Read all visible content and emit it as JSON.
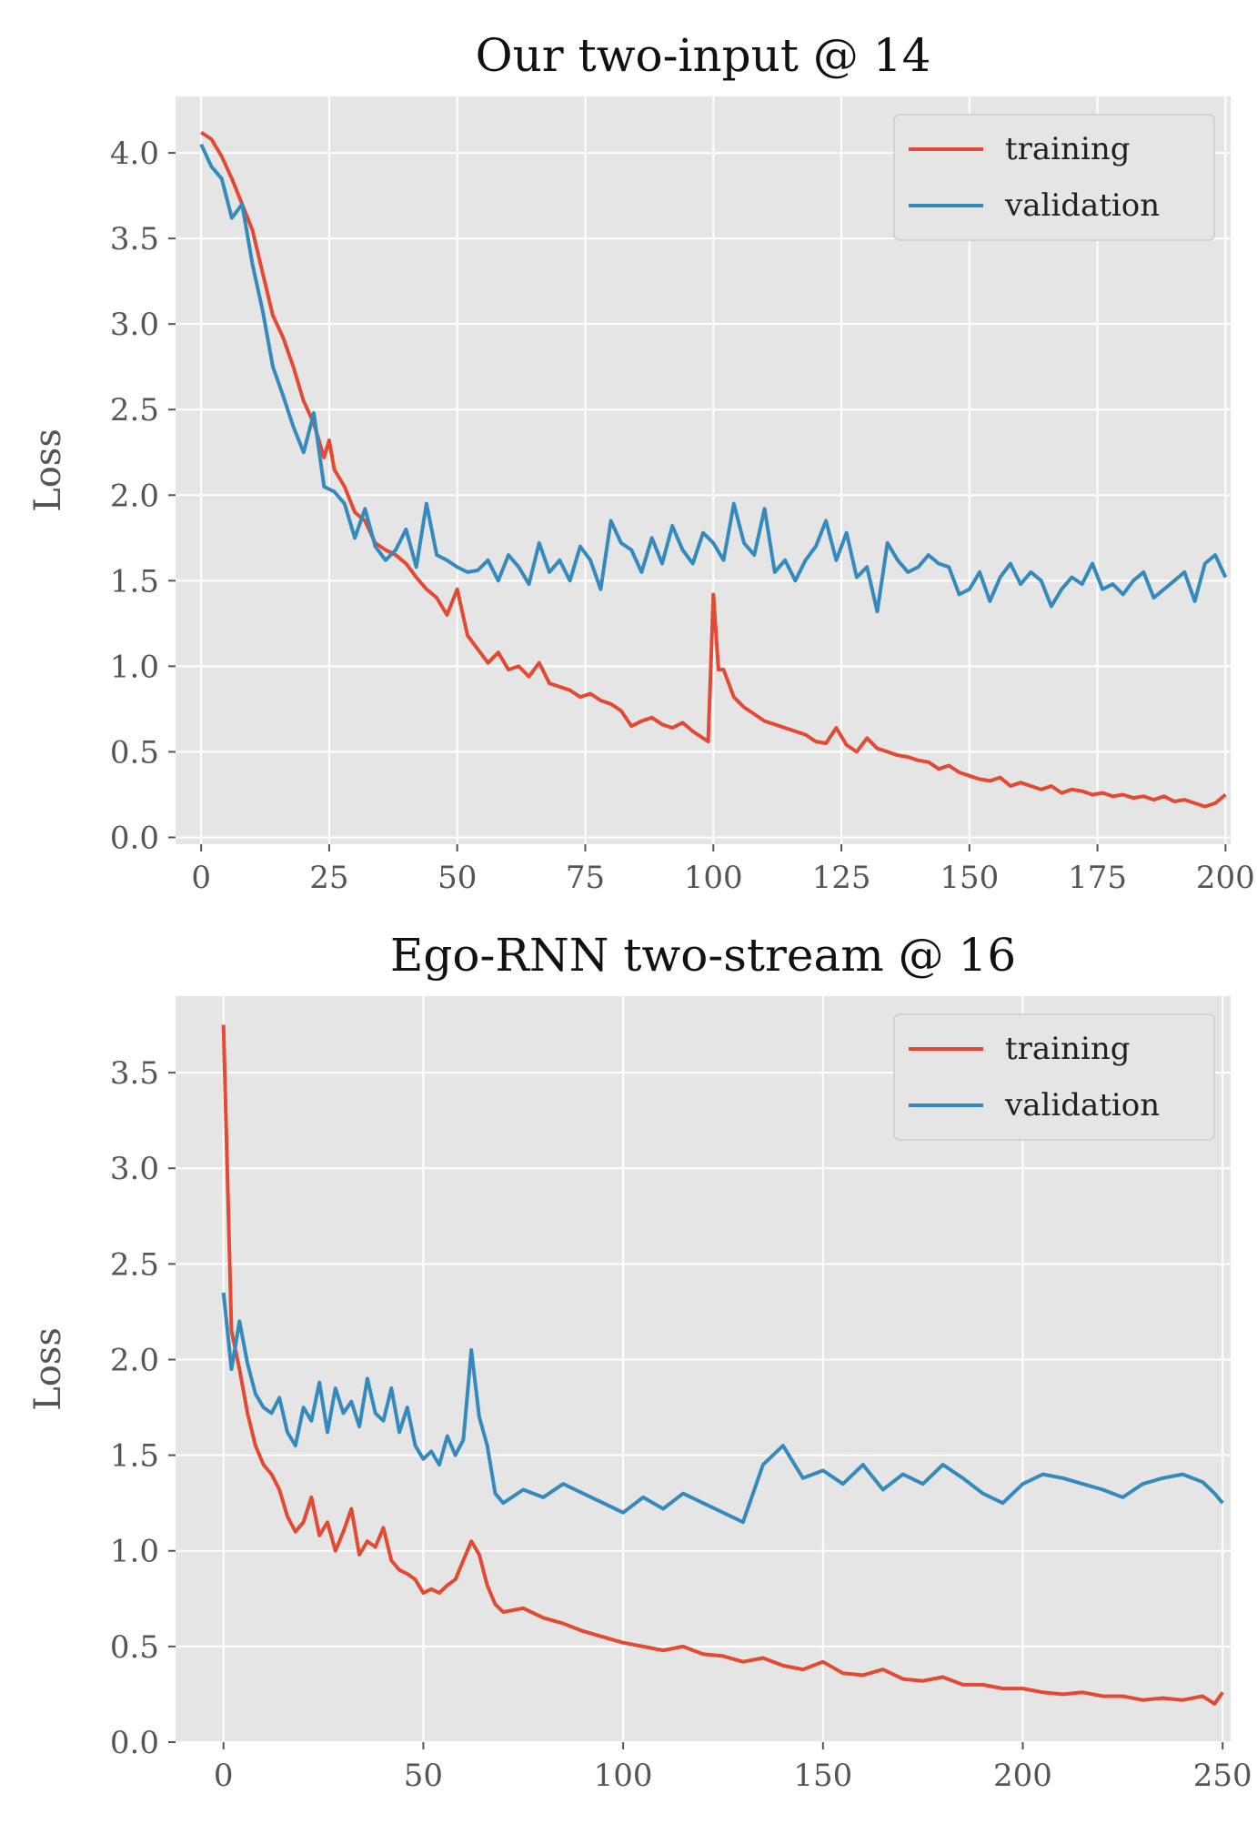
{
  "chart_data": [
    {
      "type": "line",
      "title": "Our two-input @ 14",
      "xlabel": "",
      "ylabel": "Loss",
      "xlim": [
        -5,
        201
      ],
      "ylim": [
        -0.04,
        4.33
      ],
      "xticks": [
        0,
        25,
        50,
        75,
        100,
        125,
        150,
        175,
        200
      ],
      "yticks": [
        0.0,
        0.5,
        1.0,
        1.5,
        2.0,
        2.5,
        3.0,
        3.5,
        4.0
      ],
      "xtick_labels": [
        "0",
        "25",
        "50",
        "75",
        "100",
        "125",
        "150",
        "175",
        "200"
      ],
      "ytick_labels": [
        "0.0",
        "0.5",
        "1.0",
        "1.5",
        "2.0",
        "2.5",
        "3.0",
        "3.5",
        "4.0"
      ],
      "grid": true,
      "legend_position": "top-right",
      "series": [
        {
          "name": "training",
          "color": "#e24a33",
          "x": [
            0,
            2,
            4,
            6,
            8,
            10,
            12,
            14,
            16,
            18,
            20,
            22,
            24,
            25,
            26,
            28,
            30,
            32,
            34,
            36,
            38,
            40,
            42,
            44,
            46,
            48,
            50,
            52,
            54,
            56,
            58,
            60,
            62,
            64,
            66,
            68,
            70,
            72,
            74,
            76,
            78,
            80,
            82,
            84,
            86,
            88,
            90,
            92,
            94,
            96,
            98,
            99,
            100,
            101,
            102,
            104,
            106,
            108,
            110,
            112,
            114,
            116,
            118,
            120,
            122,
            124,
            126,
            128,
            130,
            132,
            134,
            136,
            138,
            140,
            142,
            144,
            146,
            148,
            150,
            152,
            154,
            156,
            158,
            160,
            162,
            164,
            166,
            168,
            170,
            172,
            174,
            176,
            178,
            180,
            182,
            184,
            186,
            188,
            190,
            192,
            194,
            196,
            198,
            200
          ],
          "y": [
            4.12,
            4.08,
            3.98,
            3.85,
            3.7,
            3.55,
            3.3,
            3.05,
            2.92,
            2.75,
            2.55,
            2.42,
            2.22,
            2.32,
            2.15,
            2.05,
            1.9,
            1.85,
            1.72,
            1.68,
            1.65,
            1.6,
            1.52,
            1.45,
            1.4,
            1.3,
            1.45,
            1.18,
            1.1,
            1.02,
            1.08,
            0.98,
            1.0,
            0.94,
            1.02,
            0.9,
            0.88,
            0.86,
            0.82,
            0.84,
            0.8,
            0.78,
            0.74,
            0.65,
            0.68,
            0.7,
            0.66,
            0.64,
            0.67,
            0.62,
            0.58,
            0.56,
            1.42,
            0.98,
            0.98,
            0.82,
            0.76,
            0.72,
            0.68,
            0.66,
            0.64,
            0.62,
            0.6,
            0.56,
            0.55,
            0.64,
            0.54,
            0.5,
            0.58,
            0.52,
            0.5,
            0.48,
            0.47,
            0.45,
            0.44,
            0.4,
            0.42,
            0.38,
            0.36,
            0.34,
            0.33,
            0.35,
            0.3,
            0.32,
            0.3,
            0.28,
            0.3,
            0.26,
            0.28,
            0.27,
            0.25,
            0.26,
            0.24,
            0.25,
            0.23,
            0.24,
            0.22,
            0.24,
            0.21,
            0.22,
            0.2,
            0.18,
            0.2,
            0.25
          ]
        },
        {
          "name": "validation",
          "color": "#348abd",
          "x": [
            0,
            2,
            4,
            6,
            8,
            10,
            12,
            14,
            16,
            18,
            20,
            22,
            24,
            26,
            28,
            30,
            32,
            34,
            36,
            38,
            40,
            42,
            44,
            46,
            48,
            50,
            52,
            54,
            56,
            58,
            60,
            62,
            64,
            66,
            68,
            70,
            72,
            74,
            76,
            78,
            80,
            82,
            84,
            86,
            88,
            90,
            92,
            94,
            96,
            98,
            100,
            102,
            104,
            106,
            108,
            110,
            112,
            114,
            116,
            118,
            120,
            122,
            124,
            126,
            128,
            130,
            132,
            134,
            136,
            138,
            140,
            142,
            144,
            146,
            148,
            150,
            152,
            154,
            156,
            158,
            160,
            162,
            164,
            166,
            168,
            170,
            172,
            174,
            176,
            178,
            180,
            182,
            184,
            186,
            188,
            190,
            192,
            194,
            196,
            198,
            200
          ],
          "y": [
            4.05,
            3.92,
            3.85,
            3.62,
            3.7,
            3.35,
            3.08,
            2.75,
            2.58,
            2.4,
            2.25,
            2.48,
            2.05,
            2.02,
            1.95,
            1.75,
            1.92,
            1.7,
            1.62,
            1.68,
            1.8,
            1.58,
            1.95,
            1.65,
            1.62,
            1.58,
            1.55,
            1.56,
            1.62,
            1.5,
            1.65,
            1.58,
            1.48,
            1.72,
            1.55,
            1.62,
            1.5,
            1.7,
            1.62,
            1.45,
            1.85,
            1.72,
            1.68,
            1.55,
            1.75,
            1.6,
            1.82,
            1.68,
            1.6,
            1.78,
            1.72,
            1.62,
            1.95,
            1.72,
            1.65,
            1.92,
            1.55,
            1.62,
            1.5,
            1.62,
            1.7,
            1.85,
            1.62,
            1.78,
            1.52,
            1.58,
            1.32,
            1.72,
            1.62,
            1.55,
            1.58,
            1.65,
            1.6,
            1.58,
            1.42,
            1.45,
            1.55,
            1.38,
            1.52,
            1.6,
            1.48,
            1.55,
            1.5,
            1.35,
            1.45,
            1.52,
            1.48,
            1.6,
            1.45,
            1.48,
            1.42,
            1.5,
            1.55,
            1.4,
            1.45,
            1.5,
            1.55,
            1.38,
            1.6,
            1.65,
            1.52
          ]
        }
      ]
    },
    {
      "type": "line",
      "title": "Ego-RNN two-stream @ 16",
      "xlabel": "",
      "ylabel": "Loss",
      "xlim": [
        -12,
        252
      ],
      "ylim": [
        0.0,
        3.9
      ],
      "xticks": [
        0,
        50,
        100,
        150,
        200,
        250
      ],
      "yticks": [
        0.0,
        0.5,
        1.0,
        1.5,
        2.0,
        2.5,
        3.0,
        3.5
      ],
      "xtick_labels": [
        "0",
        "50",
        "100",
        "150",
        "200",
        "250"
      ],
      "ytick_labels": [
        "0.0",
        "0.5",
        "1.0",
        "1.5",
        "2.0",
        "2.5",
        "3.0",
        "3.5"
      ],
      "grid": true,
      "legend_position": "top-right",
      "series": [
        {
          "name": "training",
          "color": "#e24a33",
          "x": [
            0,
            2,
            4,
            6,
            8,
            10,
            12,
            14,
            16,
            18,
            20,
            22,
            24,
            26,
            28,
            30,
            32,
            34,
            36,
            38,
            40,
            42,
            44,
            46,
            48,
            50,
            52,
            54,
            56,
            58,
            60,
            62,
            64,
            66,
            68,
            70,
            75,
            80,
            85,
            90,
            95,
            100,
            105,
            110,
            115,
            120,
            125,
            130,
            135,
            140,
            145,
            150,
            155,
            160,
            165,
            170,
            175,
            180,
            185,
            190,
            195,
            200,
            205,
            210,
            215,
            220,
            225,
            230,
            235,
            240,
            245,
            248,
            250
          ],
          "y": [
            3.75,
            2.15,
            1.95,
            1.72,
            1.55,
            1.45,
            1.4,
            1.32,
            1.18,
            1.1,
            1.15,
            1.28,
            1.08,
            1.15,
            1.0,
            1.1,
            1.22,
            0.98,
            1.05,
            1.02,
            1.12,
            0.95,
            0.9,
            0.88,
            0.85,
            0.78,
            0.8,
            0.78,
            0.82,
            0.85,
            0.95,
            1.05,
            0.98,
            0.82,
            0.72,
            0.68,
            0.7,
            0.65,
            0.62,
            0.58,
            0.55,
            0.52,
            0.5,
            0.48,
            0.5,
            0.46,
            0.45,
            0.42,
            0.44,
            0.4,
            0.38,
            0.42,
            0.36,
            0.35,
            0.38,
            0.33,
            0.32,
            0.34,
            0.3,
            0.3,
            0.28,
            0.28,
            0.26,
            0.25,
            0.26,
            0.24,
            0.24,
            0.22,
            0.23,
            0.22,
            0.24,
            0.2,
            0.26
          ]
        },
        {
          "name": "validation",
          "color": "#348abd",
          "x": [
            0,
            2,
            4,
            6,
            8,
            10,
            12,
            14,
            16,
            18,
            20,
            22,
            24,
            26,
            28,
            30,
            32,
            34,
            36,
            38,
            40,
            42,
            44,
            46,
            48,
            50,
            52,
            54,
            56,
            58,
            60,
            62,
            64,
            66,
            68,
            70,
            75,
            80,
            85,
            90,
            95,
            100,
            105,
            110,
            115,
            120,
            125,
            130,
            135,
            140,
            145,
            150,
            155,
            160,
            165,
            170,
            175,
            180,
            185,
            190,
            195,
            200,
            205,
            210,
            215,
            220,
            225,
            230,
            235,
            240,
            245,
            248,
            250
          ],
          "y": [
            2.35,
            1.95,
            2.2,
            1.98,
            1.82,
            1.75,
            1.72,
            1.8,
            1.62,
            1.55,
            1.75,
            1.68,
            1.88,
            1.62,
            1.85,
            1.72,
            1.78,
            1.65,
            1.9,
            1.72,
            1.68,
            1.85,
            1.62,
            1.75,
            1.55,
            1.48,
            1.52,
            1.45,
            1.6,
            1.5,
            1.58,
            2.05,
            1.7,
            1.55,
            1.3,
            1.25,
            1.32,
            1.28,
            1.35,
            1.3,
            1.25,
            1.2,
            1.28,
            1.22,
            1.3,
            1.25,
            1.2,
            1.15,
            1.45,
            1.55,
            1.38,
            1.42,
            1.35,
            1.45,
            1.32,
            1.4,
            1.35,
            1.45,
            1.38,
            1.3,
            1.25,
            1.35,
            1.4,
            1.38,
            1.35,
            1.32,
            1.28,
            1.35,
            1.38,
            1.4,
            1.36,
            1.3,
            1.25
          ]
        }
      ]
    }
  ]
}
